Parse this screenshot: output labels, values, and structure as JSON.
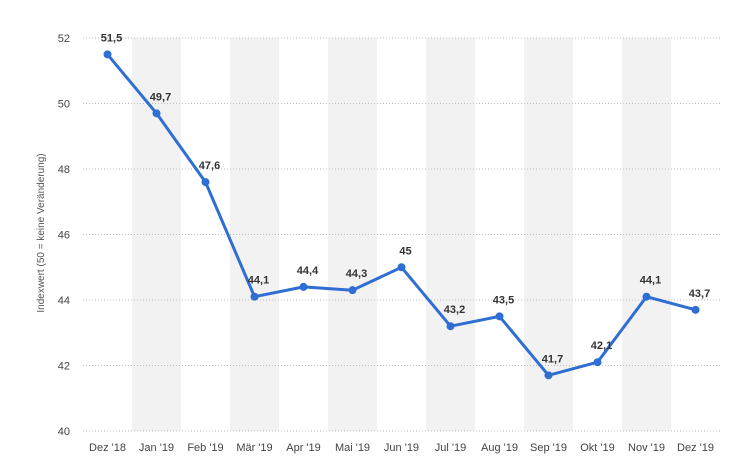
{
  "chart_data": {
    "type": "line",
    "categories": [
      "Dez '18",
      "Jan '19",
      "Feb '19",
      "Mär '19",
      "Apr '19",
      "Mai '19",
      "Jun '19",
      "Jul '19",
      "Aug '19",
      "Sep '19",
      "Okt '19",
      "Nov '19",
      "Dez '19"
    ],
    "values": [
      51.5,
      49.7,
      47.6,
      44.1,
      44.4,
      44.3,
      45,
      43.2,
      43.5,
      41.7,
      42.1,
      44.1,
      43.7
    ],
    "value_labels": [
      "51,5",
      "49,7",
      "47,6",
      "44,1",
      "44,4",
      "44,3",
      "45",
      "43,2",
      "43,5",
      "41,7",
      "42,1",
      "44,1",
      "43,7"
    ],
    "y_ticks": [
      40,
      42,
      44,
      46,
      48,
      50,
      52
    ],
    "ylim": [
      40,
      52
    ],
    "ylabel": "Indexwert (50 = keine Veränderung)",
    "xlabel": "",
    "title": "",
    "grid": true,
    "line_color": "#2f6ed3",
    "band_color": "#f2f2f2"
  }
}
